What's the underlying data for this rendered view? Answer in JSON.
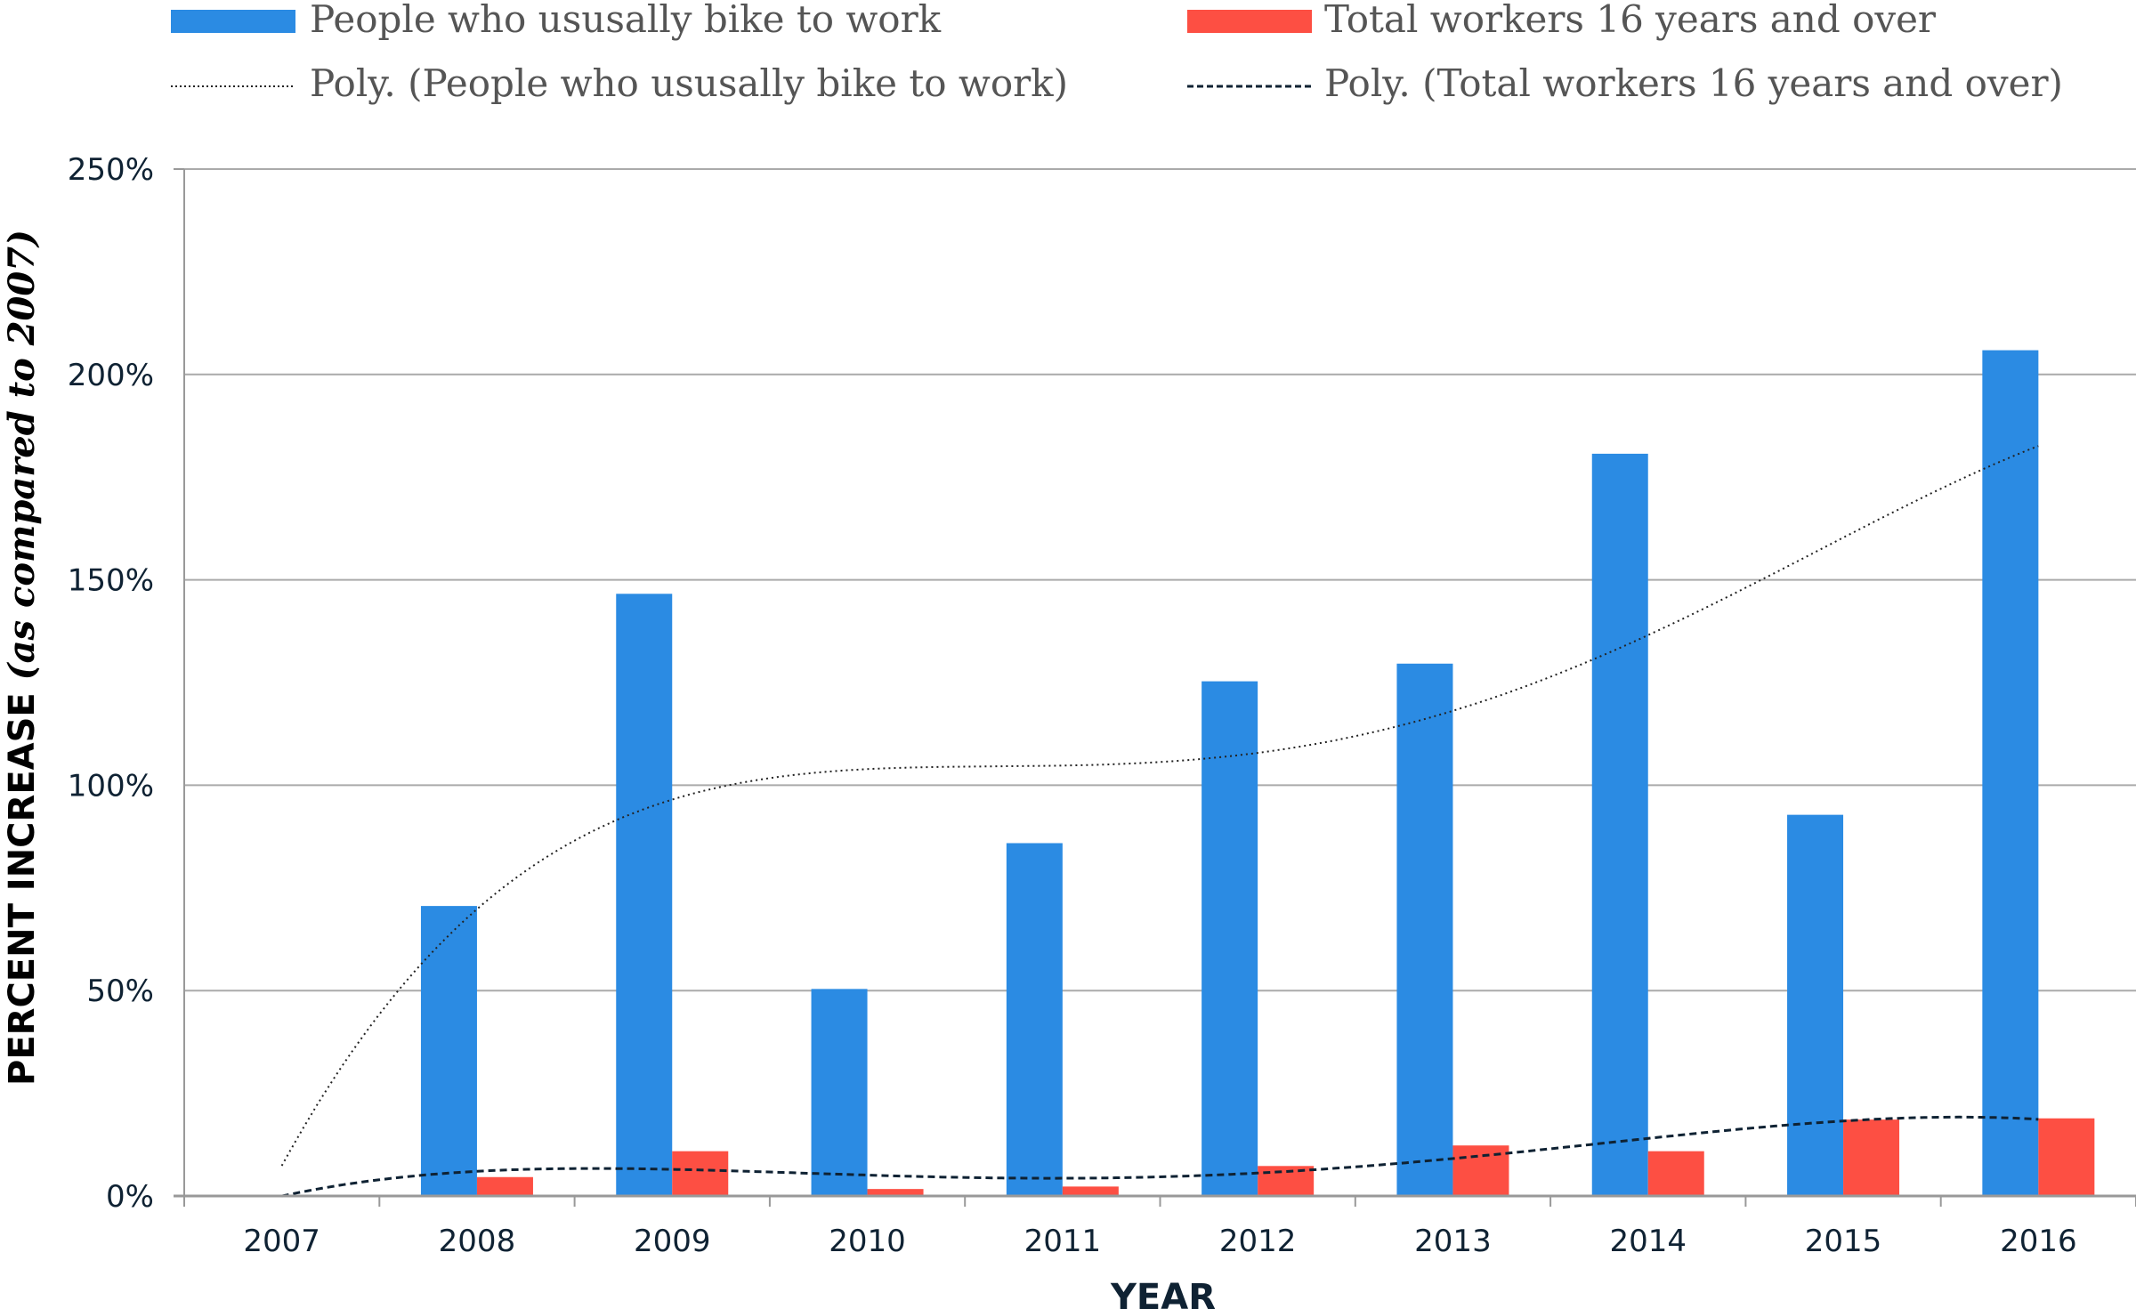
{
  "chart_data": {
    "type": "bar",
    "title": "",
    "xlabel": "YEAR",
    "ylabel": "PERCENT INCREASE",
    "ylabel_note": "(as compared to 2007)",
    "categories": [
      "2007",
      "2008",
      "2009",
      "2010",
      "2011",
      "2012",
      "2013",
      "2014",
      "2015",
      "2016"
    ],
    "ylim": [
      0,
      250
    ],
    "yticks": [
      0,
      50,
      100,
      150,
      200,
      250
    ],
    "ytick_labels": [
      "0%",
      "50%",
      "100%",
      "150%",
      "200%",
      "250%"
    ],
    "grid": true,
    "legend_position": "top",
    "series": [
      {
        "name": "People who ususally bike to work",
        "color": "#2b8be3",
        "values": [
          0,
          70.6,
          146.6,
          50.4,
          85.9,
          125.3,
          129.6,
          180.7,
          92.8,
          205.9
        ]
      },
      {
        "name": "Total workers 16 years and over",
        "color": "#fd4f43",
        "values": [
          0,
          4.6,
          10.9,
          1.7,
          2.3,
          7.3,
          12.3,
          10.9,
          18.6,
          18.9
        ]
      }
    ],
    "trendlines": [
      {
        "name": "Poly. (People who ususally bike to work)",
        "series": 0,
        "type": "polynomial",
        "order": 4,
        "style": "dotted",
        "color": "#222222"
      },
      {
        "name": "Poly. (Total workers 16 years and over)",
        "series": 1,
        "type": "polynomial",
        "order": 4,
        "style": "dashed",
        "color": "#0f2233"
      }
    ]
  }
}
